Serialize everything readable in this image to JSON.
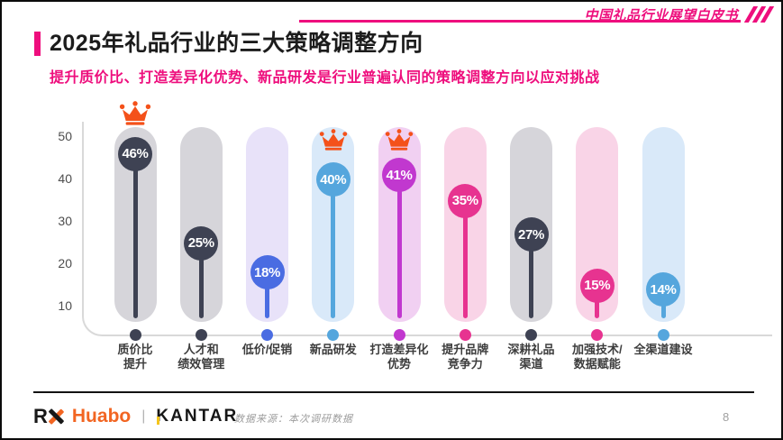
{
  "theme": {
    "accent_pink": "#ee0e7d",
    "crown_orange": "#f4511a",
    "axis_gray": "#d9d9d9",
    "huabo_orange": "#f26522",
    "kantar_yellow": "#f5c51c"
  },
  "header": {
    "watermark": "中国礼品行业展望白皮书",
    "slashes": "///"
  },
  "title": "2025年礼品行业的三大策略调整方向",
  "subtitle": "提升质价比、打造差异化优势、新品研发是行业普遍认同的策略调整方向以应对挑战",
  "chart_data": {
    "type": "bar",
    "variant": "lollipop-capsule",
    "title": "2025年礼品行业的三大策略调整方向",
    "unit": "%",
    "grid": false,
    "ylim": [
      0,
      52
    ],
    "yticks": [
      10,
      20,
      30,
      40,
      50
    ],
    "categories": [
      "质价比提升",
      "人才和绩效管理",
      "低价/促销",
      "新品研发",
      "打造差异化优势",
      "提升品牌竞争力",
      "深耕礼品渠道",
      "加强技术/数据赋能",
      "全渠道建设"
    ],
    "values": [
      46,
      25,
      18,
      40,
      41,
      35,
      27,
      15,
      14
    ],
    "crowned_categories": [
      "质价比提升",
      "新品研发",
      "打造差异化优势"
    ],
    "items": [
      {
        "label_lines": [
          "质价比",
          "提升"
        ],
        "value": 46,
        "color": "#3e4253",
        "track_color": "#d6d5da",
        "crown": "above"
      },
      {
        "label_lines": [
          "人才和",
          "绩效管理"
        ],
        "value": 25,
        "color": "#3e4253",
        "track_color": "#d6d5da",
        "crown": null
      },
      {
        "label_lines": [
          "低价/促销"
        ],
        "value": 18,
        "color": "#4a6ce2",
        "track_color": "#e8e2f9",
        "crown": null
      },
      {
        "label_lines": [
          "新品研发"
        ],
        "value": 40,
        "color": "#55a6dd",
        "track_color": "#d9e9f9",
        "crown": "inside"
      },
      {
        "label_lines": [
          "打造差异化",
          "优势"
        ],
        "value": 41,
        "color": "#c138cf",
        "track_color": "#f1d0f2",
        "crown": "inside"
      },
      {
        "label_lines": [
          "提升品牌",
          "竞争力"
        ],
        "value": 35,
        "color": "#e73390",
        "track_color": "#f9d4e7",
        "crown": null
      },
      {
        "label_lines": [
          "深耕礼品",
          "渠道"
        ],
        "value": 27,
        "color": "#3e4253",
        "track_color": "#d6d5da",
        "crown": null
      },
      {
        "label_lines": [
          "加强技术/",
          "数据赋能"
        ],
        "value": 15,
        "color": "#e73390",
        "track_color": "#f9d4e7",
        "crown": null
      },
      {
        "label_lines": [
          "全渠道建设"
        ],
        "value": 14,
        "color": "#55a6dd",
        "track_color": "#d9e9f9",
        "crown": null
      }
    ]
  },
  "footer": {
    "logo_rx_r": "R",
    "logo_huabo": "Huabo",
    "logo_separator": "|",
    "logo_kantar": "KANTAR",
    "source": "数据来源：本次调研数据",
    "page_number": "8"
  }
}
